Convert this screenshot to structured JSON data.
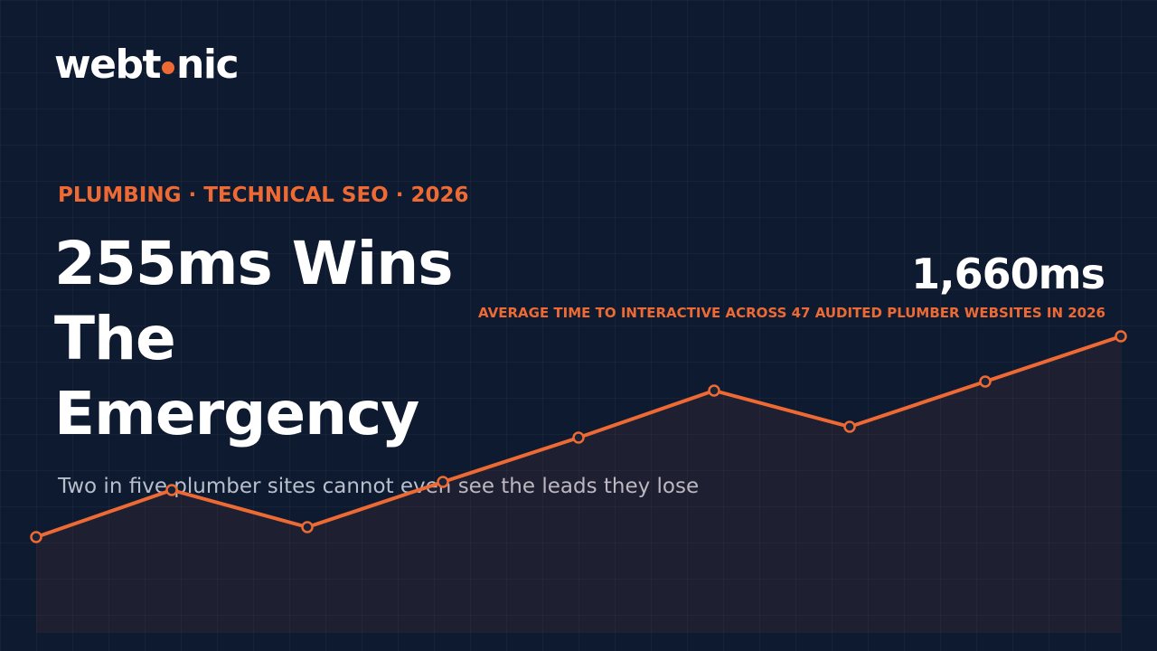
{
  "logo": [
    "webt",
    "nic"
  ],
  "eyebrow": "PLUMBING · TECHNICAL SEO · 2026",
  "title": [
    "255ms Wins",
    "The",
    "Emergency"
  ],
  "subtitle": "Two in five plumber sites cannot even see the leads they lose",
  "stat": {
    "value": "1,660ms",
    "caption": "AVERAGE TIME TO INTERACTIVE ACROSS 47 AUDITED PLUMBER WEBSITES IN 2026"
  }
}
